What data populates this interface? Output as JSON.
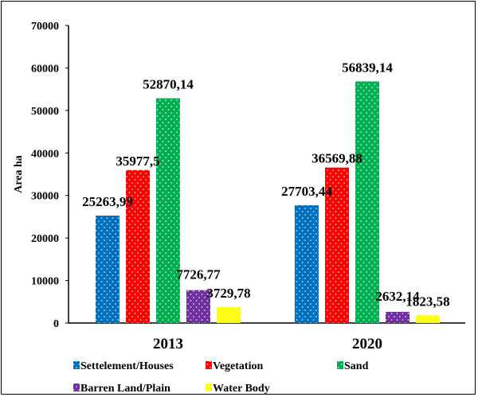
{
  "chart_data": {
    "type": "bar",
    "categories": [
      "2013",
      "2020"
    ],
    "series": [
      {
        "name": "Settelement/Houses",
        "values": [
          25263.99,
          27703.44
        ],
        "labels": [
          "25263,99",
          "27703,44"
        ],
        "color": "#0070C0"
      },
      {
        "name": "Vegetation",
        "values": [
          35977.5,
          36569.88
        ],
        "labels": [
          "35977,5",
          "36569,88"
        ],
        "color": "#FF0000"
      },
      {
        "name": "Sand",
        "values": [
          52870.14,
          56839.14
        ],
        "labels": [
          "52870,14",
          "56839,14"
        ],
        "color": "#00B050"
      },
      {
        "name": "Barren Land/Plain",
        "values": [
          7726.77,
          2632.14
        ],
        "labels": [
          "7726,77",
          "2632,14"
        ],
        "color": "#7030A0"
      },
      {
        "name": "Water Body",
        "values": [
          3729.78,
          1823.58
        ],
        "labels": [
          "3729,78",
          "1823,58"
        ],
        "color": "#FFFF00"
      }
    ],
    "title": "",
    "xlabel": "",
    "ylabel": "Area ha",
    "ylim": [
      0,
      70000
    ],
    "yticks": [
      "0",
      "10000",
      "20000",
      "30000",
      "40000",
      "50000",
      "60000",
      "70000"
    ],
    "grid": false,
    "legend": "bottom",
    "pattern": "white dots"
  }
}
